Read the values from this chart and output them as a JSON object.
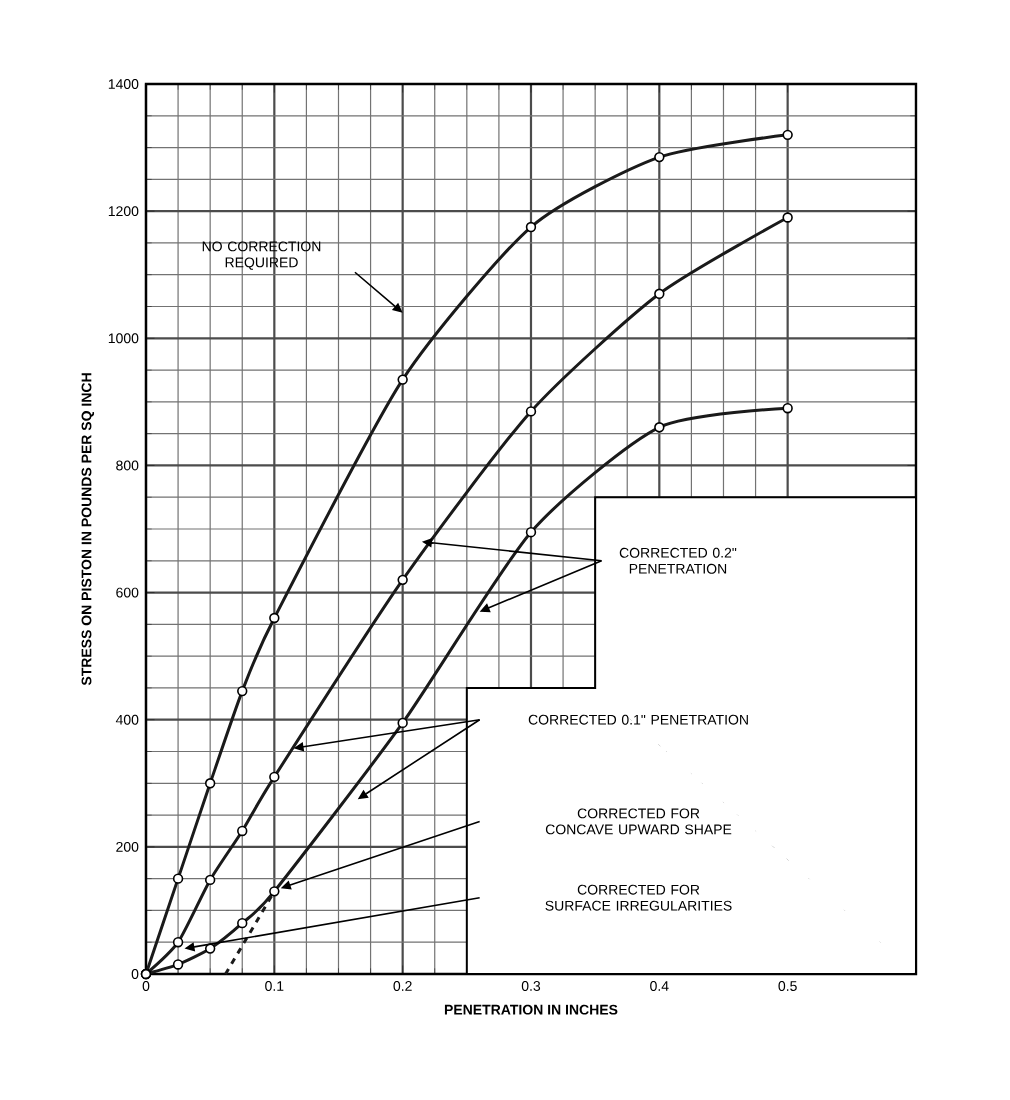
{
  "chart_data": {
    "type": "line",
    "xlabel": "PENETRATION IN INCHES",
    "ylabel": "STRESS ON PISTON IN POUNDS PER SQ INCH",
    "xlim": [
      0,
      0.6
    ],
    "xticks": [
      0,
      0.1,
      0.2,
      0.3,
      0.4,
      0.5
    ],
    "ylim": [
      0,
      1400
    ],
    "yticks": [
      0,
      200,
      400,
      600,
      800,
      1000,
      1200,
      1400
    ],
    "grid": true,
    "marker": "circle",
    "line_style": "solid",
    "series": [
      {
        "color": "#1a1a1a",
        "x": [
          0,
          0.025,
          0.05,
          0.075,
          0.1,
          0.2,
          0.3,
          0.4,
          0.5
        ],
        "values": [
          0,
          150,
          300,
          445,
          560,
          935,
          1175,
          1285,
          1320
        ]
      },
      {
        "color": "#1a1a1a",
        "x": [
          0,
          0.025,
          0.05,
          0.075,
          0.1,
          0.2,
          0.3,
          0.4,
          0.5
        ],
        "values": [
          0,
          50,
          148,
          225,
          310,
          620,
          885,
          1070,
          1190
        ]
      },
      {
        "color": "#1a1a1a",
        "x": [
          0,
          0.025,
          0.05,
          0.075,
          0.1,
          0.2,
          0.3,
          0.4,
          0.5
        ],
        "values": [
          0,
          15,
          40,
          80,
          130,
          395,
          695,
          860,
          890
        ]
      },
      {
        "color": "#1a1a1a",
        "type": "line",
        "marker": "none",
        "line_style": "dashed",
        "x": [
          0.062,
          0.1
        ],
        "values": [
          0,
          130
        ]
      }
    ],
    "annotations": [
      "NO CORRECTION REQUIRED",
      "CORRECTED 0.2\" PENETRATION",
      "CORRECTED 0.1\" PENETRATION",
      "CORRECTED FOR CONCAVE UPWARD SHAPE",
      "CORRECTED FOR SURFACE IRREGULARITIES"
    ]
  }
}
